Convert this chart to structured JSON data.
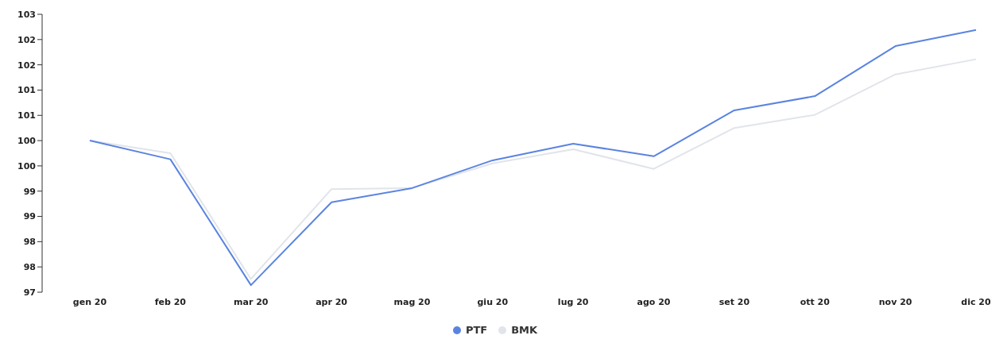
{
  "chart_data": {
    "type": "line",
    "categories": [
      "gen 20",
      "feb 20",
      "mar 20",
      "apr 20",
      "mag 20",
      "giu 20",
      "lug 20",
      "ago 20",
      "set 20",
      "ott 20",
      "nov 20",
      "dic 20"
    ],
    "series": [
      {
        "name": "PTF",
        "color": "#5b84e0",
        "values": [
          100,
          99.63,
          97.14,
          98.78,
          99.06,
          99.61,
          99.94,
          99.69,
          100.6,
          100.88,
          101.87,
          102.19
        ]
      },
      {
        "name": "BMK",
        "color": "#e1e4ea",
        "values": [
          100,
          99.75,
          97.26,
          99.04,
          99.06,
          99.55,
          99.83,
          99.44,
          100.25,
          100.51,
          101.31,
          101.61
        ]
      }
    ],
    "ylim": [
      97,
      102.5
    ],
    "yticks": [
      97,
      {
        "value": 97.5,
        "label": "98"
      },
      98,
      {
        "value": 98.5,
        "label": "99"
      },
      99,
      {
        "value": 99.5,
        "label": "100"
      },
      100,
      {
        "value": 100.5,
        "label": "101"
      },
      101,
      {
        "value": 101.5,
        "label": "102"
      },
      102,
      {
        "value": 102.5,
        "label": "103"
      }
    ],
    "grid": false,
    "legend": "bottom",
    "marker": "none",
    "line_style": "solid"
  }
}
